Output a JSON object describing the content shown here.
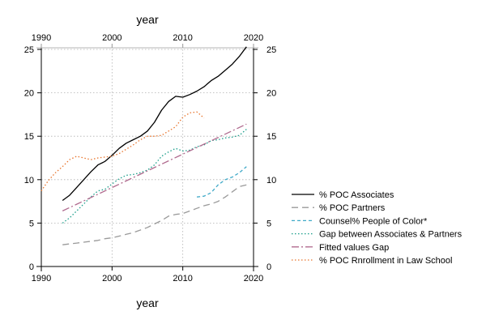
{
  "chart_data": {
    "type": "line",
    "xlabel": "year",
    "xlabel_top": "year",
    "ylabel": "",
    "xlim": [
      1990,
      2020
    ],
    "ylim": [
      0,
      25
    ],
    "xticks": [
      1990,
      2000,
      2010,
      2020
    ],
    "yticks": [
      0,
      5,
      10,
      15,
      20,
      25
    ],
    "grid": true,
    "legend_position": "right",
    "series": [
      {
        "name": "% POC Associates",
        "color": "#000000",
        "dash": "none",
        "x": [
          1993,
          1994,
          1995,
          1996,
          1997,
          1998,
          1999,
          2000,
          2001,
          2002,
          2003,
          2004,
          2005,
          2006,
          2007,
          2008,
          2009,
          2010,
          2011,
          2012,
          2013,
          2014,
          2015,
          2016,
          2017,
          2018,
          2019
        ],
        "y": [
          7.6,
          8.2,
          9.1,
          10.0,
          10.9,
          11.7,
          12.1,
          12.8,
          13.6,
          14.2,
          14.6,
          15.0,
          15.6,
          16.6,
          18.0,
          19.0,
          19.6,
          19.5,
          19.8,
          20.2,
          20.7,
          21.4,
          21.9,
          22.6,
          23.3,
          24.2,
          25.3
        ]
      },
      {
        "name": "% POC Partners",
        "color": "#9a9a9a",
        "dash": "8 5",
        "x": [
          1993,
          1994,
          1995,
          1996,
          1997,
          1998,
          1999,
          2000,
          2001,
          2002,
          2003,
          2004,
          2005,
          2006,
          2007,
          2008,
          2009,
          2010,
          2011,
          2012,
          2013,
          2014,
          2015,
          2016,
          2017,
          2018,
          2019
        ],
        "y": [
          2.5,
          2.6,
          2.7,
          2.8,
          2.9,
          3.0,
          3.2,
          3.3,
          3.5,
          3.7,
          3.9,
          4.2,
          4.5,
          4.9,
          5.3,
          5.8,
          6.0,
          6.1,
          6.4,
          6.7,
          7.0,
          7.2,
          7.5,
          8.0,
          8.6,
          9.2,
          9.4
        ]
      },
      {
        "name": "Counsel% People of Color*",
        "color": "#3fa9c8",
        "dash": "4 3",
        "x": [
          2012,
          2013,
          2014,
          2015,
          2016,
          2017,
          2018,
          2019
        ],
        "y": [
          8.0,
          8.1,
          8.5,
          9.4,
          10.0,
          10.3,
          10.8,
          11.5
        ]
      },
      {
        "name": "Gap between Associates &  Partners",
        "color": "#1a9e8a",
        "dash": "1.5 2.5",
        "x": [
          1993,
          1994,
          1995,
          1996,
          1997,
          1998,
          1999,
          2000,
          2001,
          2002,
          2003,
          2004,
          2005,
          2006,
          2007,
          2008,
          2009,
          2010,
          2011,
          2012,
          2013,
          2014,
          2015,
          2016,
          2017,
          2018,
          2019
        ],
        "y": [
          5.0,
          5.6,
          6.4,
          7.2,
          8.0,
          8.7,
          8.9,
          9.5,
          10.1,
          10.5,
          10.6,
          10.8,
          11.1,
          11.7,
          12.7,
          13.2,
          13.6,
          13.3,
          13.4,
          13.8,
          14.0,
          14.5,
          14.6,
          14.8,
          14.9,
          15.1,
          15.8
        ]
      },
      {
        "name": "Fitted values Gap",
        "color": "#b06a8e",
        "dash": "9 3 2 3",
        "x": [
          1993,
          2019
        ],
        "y": [
          6.4,
          16.4
        ]
      },
      {
        "name": "% POC Rnrollment in Law School",
        "color": "#e8742c",
        "dash": "1.5 2.5",
        "x": [
          1990,
          1991,
          1992,
          1993,
          1994,
          1995,
          1996,
          1997,
          1998,
          1999,
          2000,
          2001,
          2002,
          2003,
          2004,
          2005,
          2006,
          2007,
          2008,
          2009,
          2010,
          2011,
          2012,
          2013
        ],
        "y": [
          8.7,
          9.9,
          10.8,
          11.5,
          12.3,
          12.7,
          12.5,
          12.3,
          12.5,
          12.6,
          12.7,
          13.0,
          13.5,
          14.0,
          14.6,
          15.0,
          15.0,
          15.1,
          15.6,
          16.1,
          17.2,
          17.7,
          17.8,
          17.1
        ]
      }
    ]
  }
}
